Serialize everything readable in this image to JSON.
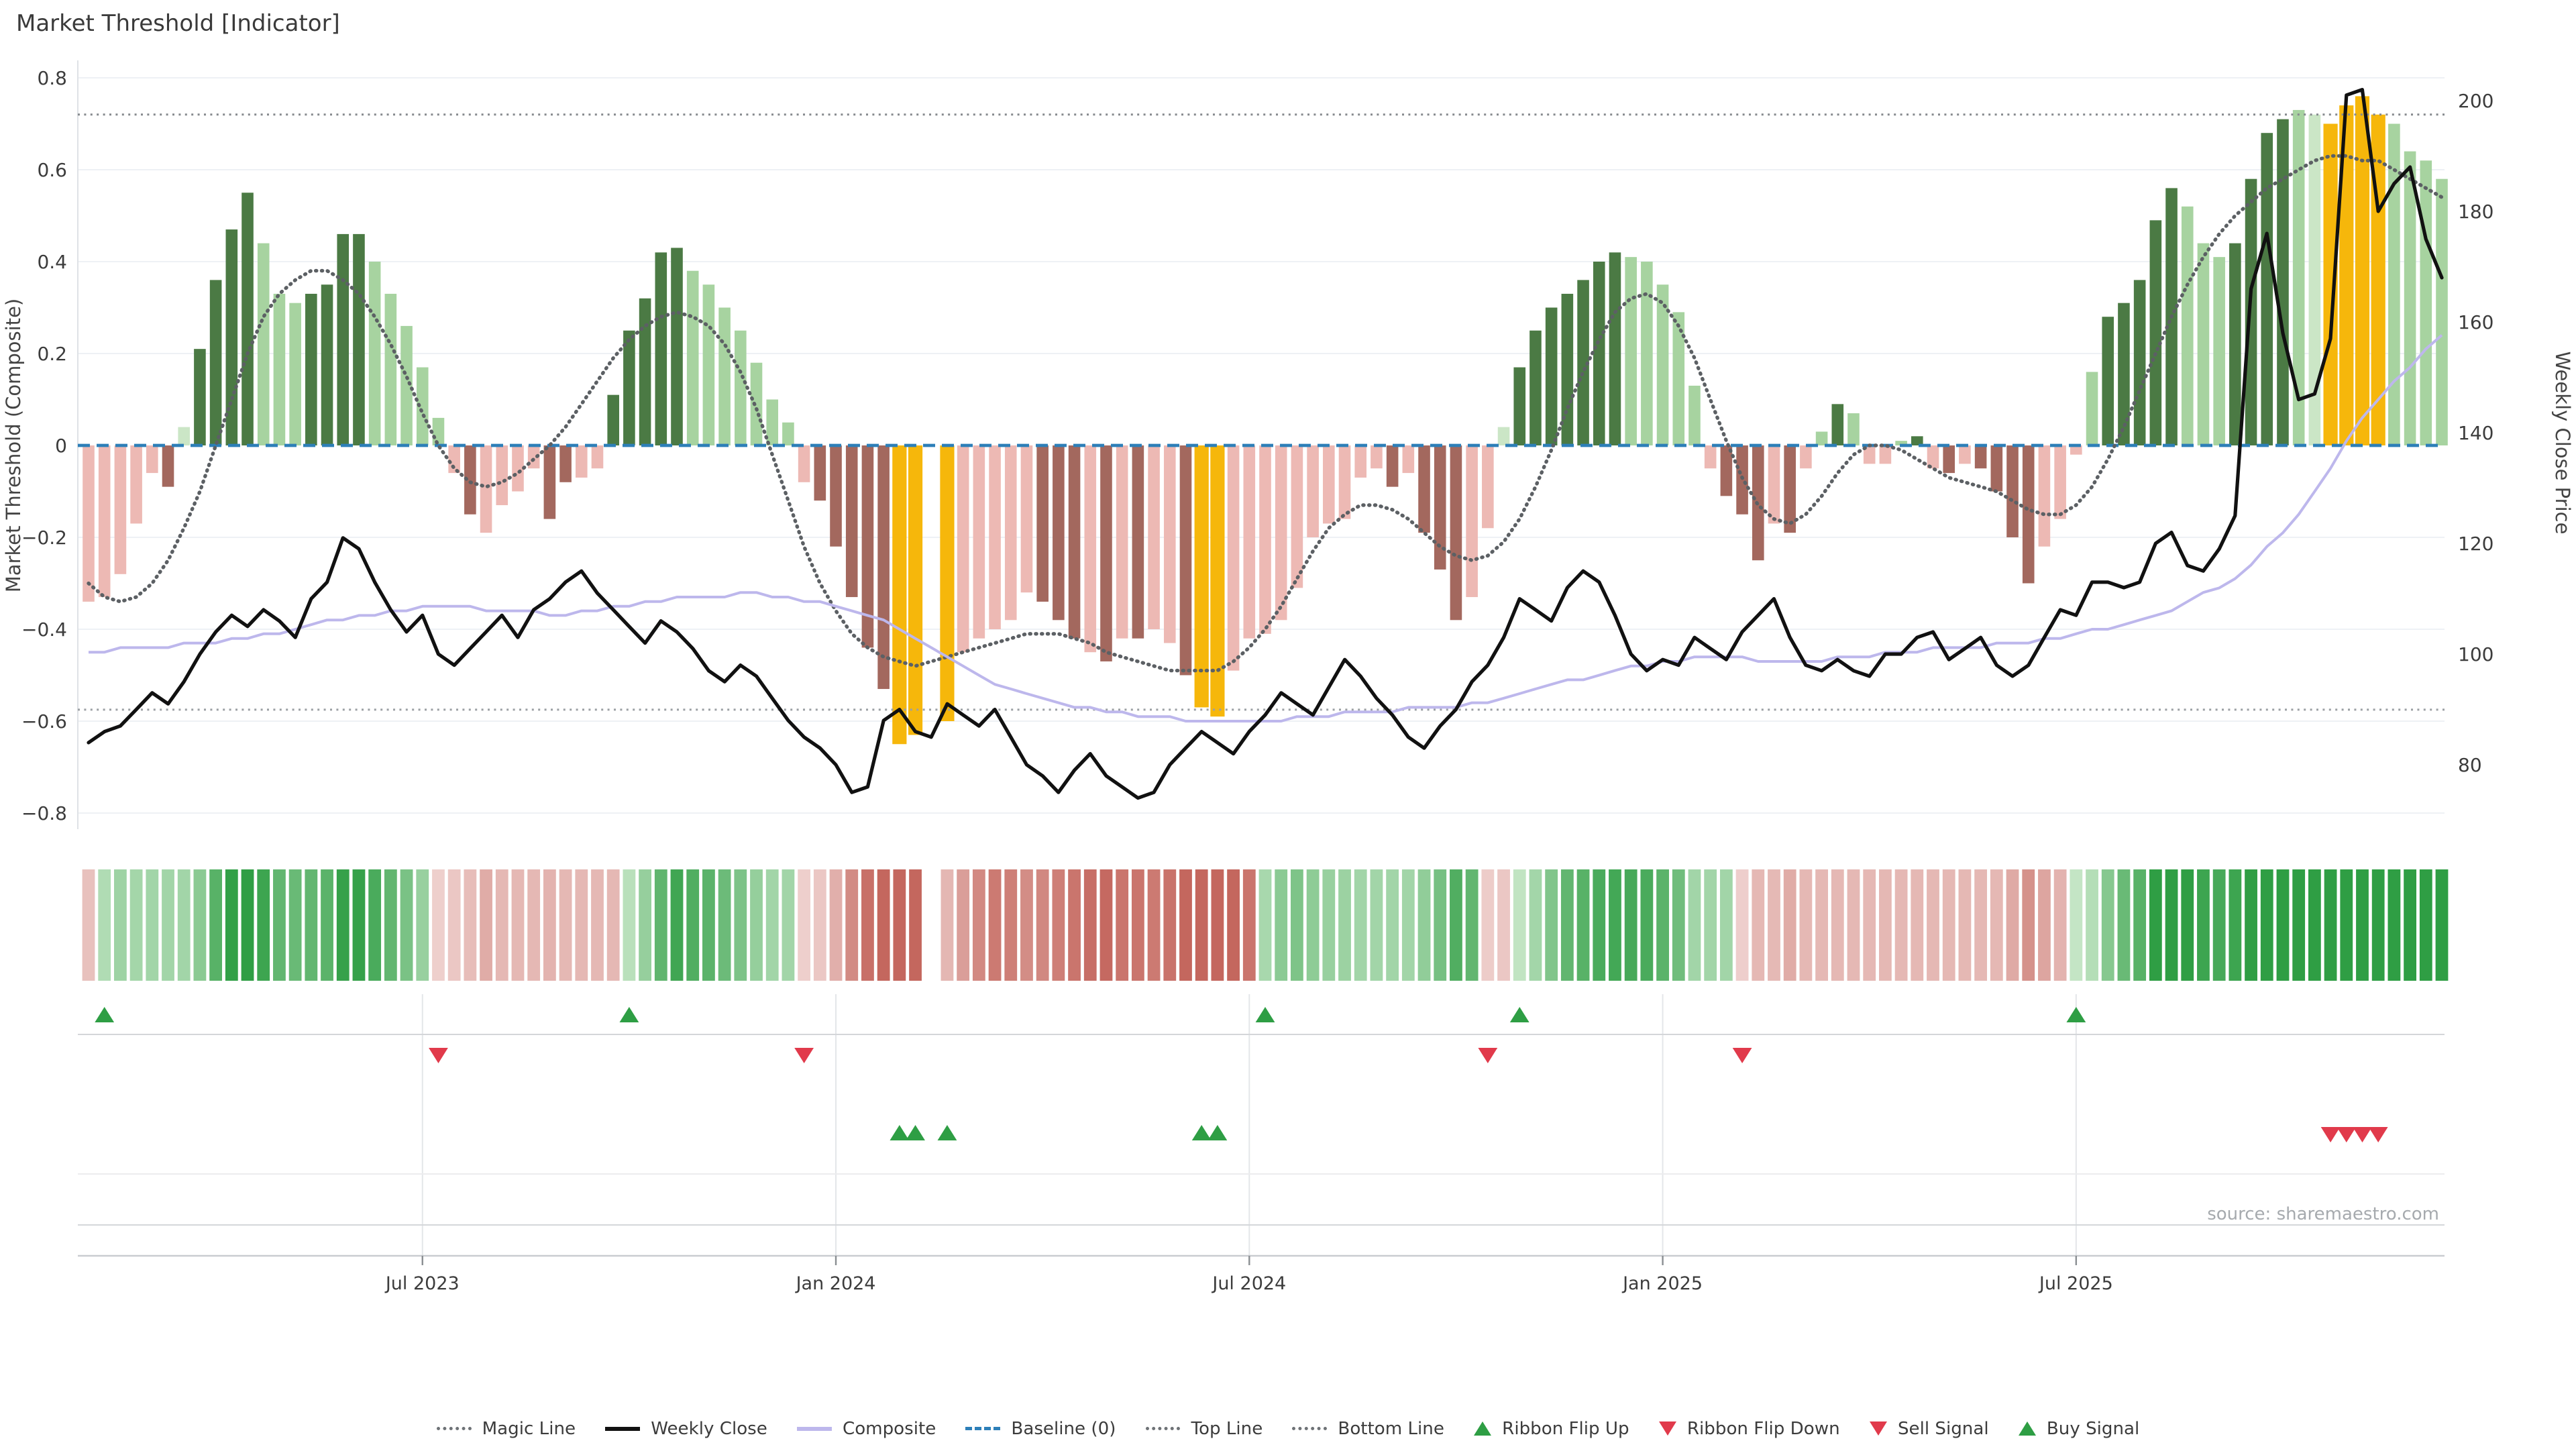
{
  "title": "Market Threshold [Indicator]",
  "source": "source: sharemaestro.com",
  "axes": {
    "left": {
      "title": "Market Threshold (Composite)",
      "ticks": [
        "0.8",
        "0.6",
        "0.4",
        "0.2",
        "0",
        "−0.2",
        "−0.4",
        "−0.6",
        "−0.8"
      ],
      "tick_values": [
        0.8,
        0.6,
        0.4,
        0.2,
        0,
        -0.2,
        -0.4,
        -0.6,
        -0.8
      ]
    },
    "right": {
      "title": "Weekly Close Price",
      "ticks": [
        "200",
        "180",
        "160",
        "140",
        "120",
        "100",
        "80"
      ],
      "tick_values": [
        200,
        180,
        160,
        140,
        120,
        100,
        80
      ]
    },
    "x": {
      "labels": [
        "Jul 2023",
        "Jan 2024",
        "Jul 2024",
        "Jan 2025",
        "Jul 2025"
      ],
      "label_weeks": [
        21,
        47,
        73,
        99,
        125
      ]
    }
  },
  "chart_data": {
    "type": "bar+line",
    "x_unit": "week",
    "weeks": 149,
    "ylim_left": [
      -0.8,
      0.8
    ],
    "ylim_right": [
      80,
      200
    ],
    "top_line": 0.72,
    "bottom_line": -0.575,
    "baseline": 0,
    "composite_bars": [
      -0.34,
      -0.33,
      -0.28,
      -0.17,
      -0.06,
      -0.09,
      0.04,
      0.21,
      0.36,
      0.47,
      0.55,
      0.44,
      0.33,
      0.31,
      0.33,
      0.35,
      0.46,
      0.46,
      0.4,
      0.33,
      0.26,
      0.17,
      0.06,
      -0.06,
      -0.15,
      -0.19,
      -0.13,
      -0.1,
      -0.05,
      -0.16,
      -0.08,
      -0.07,
      -0.05,
      0.11,
      0.25,
      0.32,
      0.42,
      0.43,
      0.38,
      0.35,
      0.3,
      0.25,
      0.18,
      0.1,
      0.05,
      -0.08,
      -0.12,
      -0.22,
      -0.33,
      -0.44,
      -0.53,
      -0.65,
      -0.63,
      null,
      -0.6,
      -0.45,
      -0.42,
      -0.4,
      -0.38,
      -0.32,
      -0.34,
      -0.38,
      -0.42,
      -0.45,
      -0.47,
      -0.42,
      -0.42,
      -0.4,
      -0.43,
      -0.5,
      -0.57,
      -0.59,
      -0.49,
      -0.42,
      -0.41,
      -0.38,
      -0.31,
      -0.2,
      -0.17,
      -0.16,
      -0.07,
      -0.05,
      -0.09,
      -0.06,
      -0.19,
      -0.27,
      -0.38,
      -0.33,
      -0.18,
      0.04,
      0.17,
      0.25,
      0.3,
      0.33,
      0.36,
      0.4,
      0.42,
      0.41,
      0.4,
      0.35,
      0.29,
      0.13,
      -0.05,
      -0.11,
      -0.15,
      -0.25,
      -0.17,
      -0.19,
      -0.05,
      0.03,
      0.09,
      0.07,
      -0.04,
      -0.04,
      0.01,
      0.02,
      -0.05,
      -0.06,
      -0.04,
      -0.05,
      -0.1,
      -0.2,
      -0.3,
      -0.22,
      -0.16,
      -0.02,
      0.16,
      0.28,
      0.31,
      0.36,
      0.49,
      0.56,
      0.52,
      0.44,
      0.41,
      0.44,
      0.58,
      0.68,
      0.71,
      0.73,
      0.72,
      0.7,
      0.74,
      0.76,
      0.72,
      0.7,
      0.64,
      0.62,
      0.58
    ],
    "bar_shades": "kkkkkrpddddlllddddlllllkrkkkkrrkkdddddlllllllkrrrrryynykkkkkrrrkrkrkkryykkkkkkkkkkrkrrrkkpdddddddlllllkrrrkrkldlkkldkrkrrrrkkkldddddlllddddlpyyyyllll",
    "weekly_close": [
      84,
      86,
      87,
      90,
      93,
      91,
      95,
      100,
      104,
      107,
      105,
      108,
      106,
      103,
      110,
      113,
      121,
      119,
      113,
      108,
      104,
      107,
      100,
      98,
      101,
      104,
      107,
      103,
      108,
      110,
      113,
      115,
      111,
      108,
      105,
      102,
      106,
      104,
      101,
      97,
      95,
      98,
      96,
      92,
      88,
      85,
      83,
      80,
      75,
      76,
      88,
      90,
      86,
      85,
      91,
      89,
      87,
      90,
      85,
      80,
      78,
      75,
      79,
      82,
      78,
      76,
      74,
      75,
      80,
      83,
      86,
      84,
      82,
      86,
      89,
      93,
      91,
      89,
      94,
      99,
      96,
      92,
      89,
      85,
      83,
      87,
      90,
      95,
      98,
      103,
      110,
      108,
      106,
      112,
      115,
      113,
      107,
      100,
      97,
      99,
      98,
      103,
      101,
      99,
      104,
      107,
      110,
      103,
      98,
      97,
      99,
      97,
      96,
      100,
      100,
      103,
      104,
      99,
      101,
      103,
      98,
      96,
      98,
      103,
      108,
      107,
      113,
      113,
      112,
      113,
      120,
      122,
      116,
      115,
      119,
      125,
      166,
      176,
      158,
      146,
      147,
      157,
      201,
      202,
      180,
      185,
      188,
      175,
      168
    ],
    "magic_line": [
      -0.3,
      -0.33,
      -0.34,
      -0.33,
      -0.3,
      -0.25,
      -0.18,
      -0.1,
      0.0,
      0.1,
      0.2,
      0.28,
      0.33,
      0.36,
      0.38,
      0.38,
      0.36,
      0.33,
      0.28,
      0.22,
      0.15,
      0.07,
      0.0,
      -0.05,
      -0.08,
      -0.09,
      -0.08,
      -0.06,
      -0.03,
      0.0,
      0.04,
      0.09,
      0.14,
      0.19,
      0.23,
      0.26,
      0.28,
      0.29,
      0.28,
      0.26,
      0.22,
      0.16,
      0.08,
      -0.02,
      -0.12,
      -0.22,
      -0.3,
      -0.36,
      -0.41,
      -0.44,
      -0.46,
      -0.47,
      -0.48,
      -0.47,
      -0.46,
      -0.45,
      -0.44,
      -0.43,
      -0.42,
      -0.41,
      -0.41,
      -0.41,
      -0.42,
      -0.43,
      -0.45,
      -0.46,
      -0.47,
      -0.48,
      -0.49,
      -0.49,
      -0.49,
      -0.49,
      -0.47,
      -0.44,
      -0.4,
      -0.35,
      -0.29,
      -0.23,
      -0.18,
      -0.15,
      -0.13,
      -0.13,
      -0.14,
      -0.16,
      -0.19,
      -0.22,
      -0.24,
      -0.25,
      -0.24,
      -0.21,
      -0.16,
      -0.09,
      -0.01,
      0.08,
      0.16,
      0.23,
      0.29,
      0.32,
      0.33,
      0.31,
      0.26,
      0.19,
      0.1,
      0.01,
      -0.07,
      -0.13,
      -0.16,
      -0.17,
      -0.15,
      -0.11,
      -0.06,
      -0.02,
      0.0,
      0.0,
      -0.01,
      -0.03,
      -0.05,
      -0.07,
      -0.08,
      -0.09,
      -0.1,
      -0.12,
      -0.14,
      -0.15,
      -0.15,
      -0.13,
      -0.09,
      -0.03,
      0.04,
      0.12,
      0.2,
      0.28,
      0.35,
      0.41,
      0.46,
      0.5,
      0.53,
      0.56,
      0.58,
      0.6,
      0.62,
      0.63,
      0.63,
      0.62,
      0.62,
      0.6,
      0.58,
      0.56,
      0.54
    ],
    "composite_line": [
      -0.45,
      -0.45,
      -0.44,
      -0.44,
      -0.44,
      -0.44,
      -0.43,
      -0.43,
      -0.43,
      -0.42,
      -0.42,
      -0.41,
      -0.41,
      -0.4,
      -0.39,
      -0.38,
      -0.38,
      -0.37,
      -0.37,
      -0.36,
      -0.36,
      -0.35,
      -0.35,
      -0.35,
      -0.35,
      -0.36,
      -0.36,
      -0.36,
      -0.36,
      -0.37,
      -0.37,
      -0.36,
      -0.36,
      -0.35,
      -0.35,
      -0.34,
      -0.34,
      -0.33,
      -0.33,
      -0.33,
      -0.33,
      -0.32,
      -0.32,
      -0.33,
      -0.33,
      -0.34,
      -0.34,
      -0.35,
      -0.36,
      -0.37,
      -0.38,
      -0.4,
      -0.42,
      -0.44,
      -0.46,
      -0.48,
      -0.5,
      -0.52,
      -0.53,
      -0.54,
      -0.55,
      -0.56,
      -0.57,
      -0.57,
      -0.58,
      -0.58,
      -0.59,
      -0.59,
      -0.59,
      -0.6,
      -0.6,
      -0.6,
      -0.6,
      -0.6,
      -0.6,
      -0.6,
      -0.59,
      -0.59,
      -0.59,
      -0.58,
      -0.58,
      -0.58,
      -0.58,
      -0.57,
      -0.57,
      -0.57,
      -0.57,
      -0.56,
      -0.56,
      -0.55,
      -0.54,
      -0.53,
      -0.52,
      -0.51,
      -0.51,
      -0.5,
      -0.49,
      -0.48,
      -0.48,
      -0.47,
      -0.47,
      -0.46,
      -0.46,
      -0.46,
      -0.46,
      -0.47,
      -0.47,
      -0.47,
      -0.47,
      -0.47,
      -0.46,
      -0.46,
      -0.46,
      -0.45,
      -0.45,
      -0.45,
      -0.44,
      -0.44,
      -0.44,
      -0.44,
      -0.43,
      -0.43,
      -0.43,
      -0.42,
      -0.42,
      -0.41,
      -0.4,
      -0.4,
      -0.39,
      -0.38,
      -0.37,
      -0.36,
      -0.34,
      -0.32,
      -0.31,
      -0.29,
      -0.26,
      -0.22,
      -0.19,
      -0.15,
      -0.1,
      -0.05,
      0.01,
      0.06,
      0.1,
      0.14,
      0.17,
      0.21,
      0.24
    ],
    "ribbon": "rgggggggggggggggggggggrrrrrrrrrrrrgggggggggggrrrrrrrrxrrrrrrrrrrrrrrrrrrrrggggggggggggggrrggggggggggggggrrrrrrrrrrrrrrrrrrrrrgggggggggggggggggggggggg",
    "signals": {
      "ribbon_flip_up_weeks": [
        1,
        34,
        74,
        90,
        125
      ],
      "ribbon_flip_down_weeks": [
        22,
        45,
        88,
        104
      ],
      "buy_weeks": [
        51,
        52,
        54,
        70,
        71
      ],
      "sell_weeks": [
        141,
        142,
        143,
        144
      ]
    }
  },
  "colors": {
    "bar_dark_green": "#4b7a44",
    "bar_light_green": "#a7d3a0",
    "bar_pale_green": "#cbe6c6",
    "bar_pink": "#edb9b4",
    "bar_maroon": "#a3685e",
    "bar_yellow": "#f6b70b",
    "ribbon_green": "#2f9e44",
    "ribbon_green_pale": "#d2ecd1",
    "ribbon_red": "#c4675e",
    "ribbon_red_pale": "#f2d9d7",
    "weekly_close": "#111111",
    "composite_line": "#bdb7ec",
    "magic_line": "#5c6064",
    "baseline": "#2d7fb8",
    "top_bottom_line": "#8d9296",
    "flip_up": "#2e9e44",
    "flip_down": "#e13a4b",
    "grid": "#eef1f5",
    "axis_text": "#3c3c3c",
    "source_text": "#a6aaae"
  },
  "legend": {
    "items": [
      {
        "label": "Magic Line",
        "marker": "dotted-gray"
      },
      {
        "label": "Weekly Close",
        "marker": "solid-black"
      },
      {
        "label": "Composite",
        "marker": "solid-lavender"
      },
      {
        "label": "Baseline (0)",
        "marker": "dashed-blue"
      },
      {
        "label": "Top Line",
        "marker": "dotted-gray"
      },
      {
        "label": "Bottom Line",
        "marker": "dotted-gray"
      },
      {
        "label": "Ribbon Flip Up",
        "marker": "tri-up-green"
      },
      {
        "label": "Ribbon Flip Down",
        "marker": "tri-down-red"
      },
      {
        "label": "Sell Signal",
        "marker": "tri-down-red"
      },
      {
        "label": "Buy Signal",
        "marker": "tri-up-green"
      }
    ]
  }
}
